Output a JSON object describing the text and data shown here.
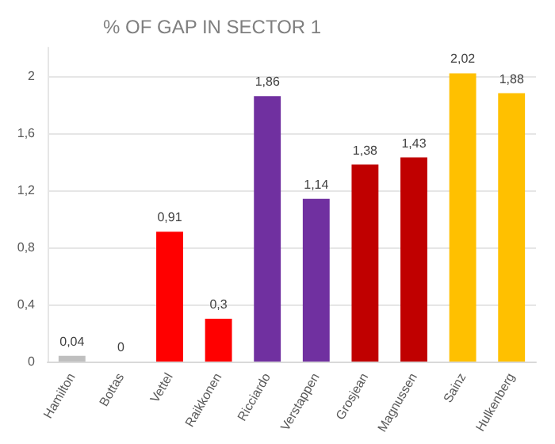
{
  "chart_data": {
    "type": "bar",
    "title": "% OF GAP IN SECTOR 1",
    "categories": [
      "Hamilton",
      "Bottas",
      "Vettel",
      "Raikkonen",
      "Ricciardo",
      "Verstappen",
      "Grosjean",
      "Magnussen",
      "Sainz",
      "Hulkenberg"
    ],
    "values": [
      0.04,
      0,
      0.91,
      0.3,
      1.86,
      1.14,
      1.38,
      1.43,
      2.02,
      1.88
    ],
    "colors": [
      "#bfbfbf",
      "#bfbfbf",
      "#ff0000",
      "#ff0000",
      "#7030a0",
      "#7030a0",
      "#c00000",
      "#c00000",
      "#ffc000",
      "#ffc000"
    ],
    "value_labels": [
      "0,04",
      "0",
      "0,91",
      "0,3",
      "1,86",
      "1,14",
      "1,38",
      "1,43",
      "2,02",
      "1,88"
    ],
    "ylim": [
      0,
      2.2
    ],
    "yticks": [
      0,
      {
        "value": 0.4,
        "label": "0,4"
      },
      {
        "value": 0.8,
        "label": "0,8"
      },
      {
        "value": 1.2,
        "label": "1,2"
      },
      {
        "value": 1.6,
        "label": "1,6"
      },
      2
    ],
    "grid": "y"
  }
}
